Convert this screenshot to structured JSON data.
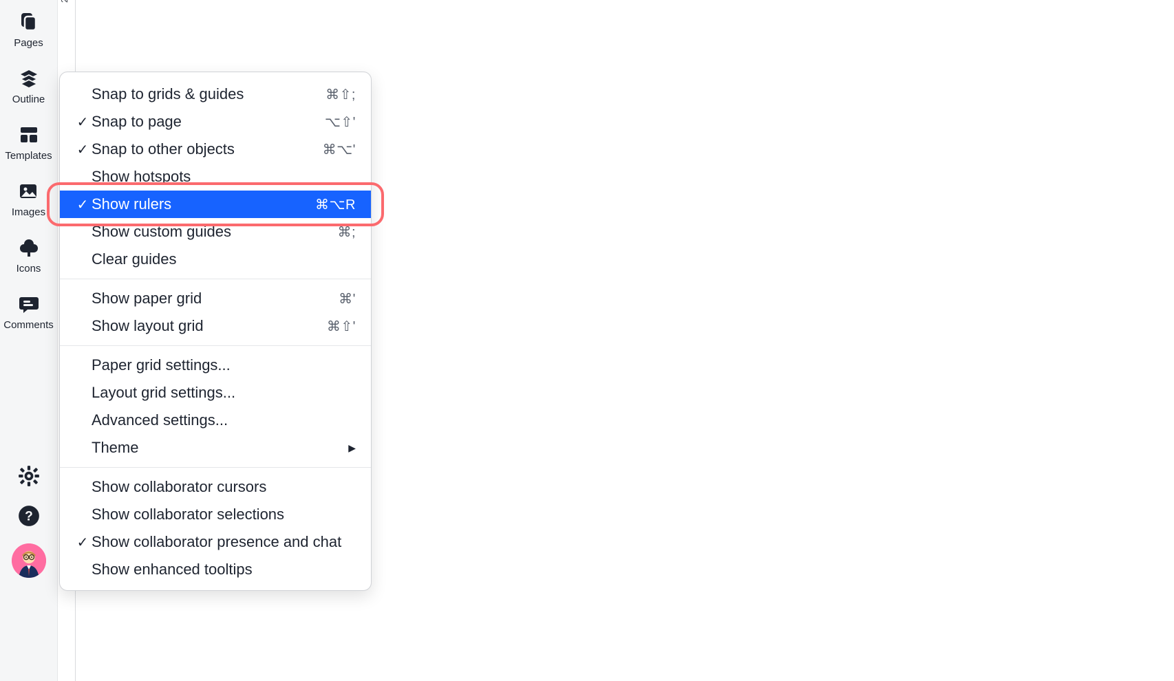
{
  "sidebar": {
    "items": [
      {
        "key": "pages",
        "label": "Pages"
      },
      {
        "key": "outline",
        "label": "Outline"
      },
      {
        "key": "templates",
        "label": "Templates"
      },
      {
        "key": "images",
        "label": "Images"
      },
      {
        "key": "icons",
        "label": "Icons"
      },
      {
        "key": "comments",
        "label": "Comments"
      }
    ]
  },
  "ruler": {
    "tick": "20"
  },
  "menu": {
    "highlight_color": "#fb6a6e",
    "selected_bg": "#1763ff",
    "groups": [
      [
        {
          "key": "snap-grids-guides",
          "label": "Snap to grids & guides",
          "checked": false,
          "shortcut": "⌘⇧;"
        },
        {
          "key": "snap-to-page",
          "label": "Snap to page",
          "checked": true,
          "shortcut": "⌥⇧'"
        },
        {
          "key": "snap-to-other-objects",
          "label": "Snap to other objects",
          "checked": true,
          "shortcut": "⌘⌥'"
        },
        {
          "key": "show-hotspots",
          "label": "Show hotspots",
          "checked": false,
          "shortcut": ""
        },
        {
          "key": "show-rulers",
          "label": "Show rulers",
          "checked": true,
          "shortcut": "⌘⌥R",
          "selected": true,
          "highlighted": true
        },
        {
          "key": "show-custom-guides",
          "label": "Show custom guides",
          "checked": false,
          "shortcut": "⌘;"
        },
        {
          "key": "clear-guides",
          "label": "Clear guides",
          "checked": false,
          "shortcut": ""
        }
      ],
      [
        {
          "key": "show-paper-grid",
          "label": "Show paper grid",
          "checked": false,
          "shortcut": "⌘'"
        },
        {
          "key": "show-layout-grid",
          "label": "Show layout grid",
          "checked": false,
          "shortcut": "⌘⇧'"
        }
      ],
      [
        {
          "key": "paper-grid-settings",
          "label": "Paper grid settings...",
          "checked": false,
          "shortcut": ""
        },
        {
          "key": "layout-grid-settings",
          "label": "Layout grid settings...",
          "checked": false,
          "shortcut": ""
        },
        {
          "key": "advanced-settings",
          "label": "Advanced settings...",
          "checked": false,
          "shortcut": ""
        },
        {
          "key": "theme",
          "label": "Theme",
          "checked": false,
          "shortcut": "",
          "submenu": true
        }
      ],
      [
        {
          "key": "show-collab-cursors",
          "label": "Show collaborator cursors",
          "checked": false,
          "shortcut": ""
        },
        {
          "key": "show-collab-selections",
          "label": "Show collaborator selections",
          "checked": false,
          "shortcut": ""
        },
        {
          "key": "show-collab-presence",
          "label": "Show collaborator presence and chat",
          "checked": true,
          "shortcut": ""
        },
        {
          "key": "show-enhanced-tooltips",
          "label": "Show enhanced tooltips",
          "checked": false,
          "shortcut": ""
        }
      ]
    ]
  }
}
